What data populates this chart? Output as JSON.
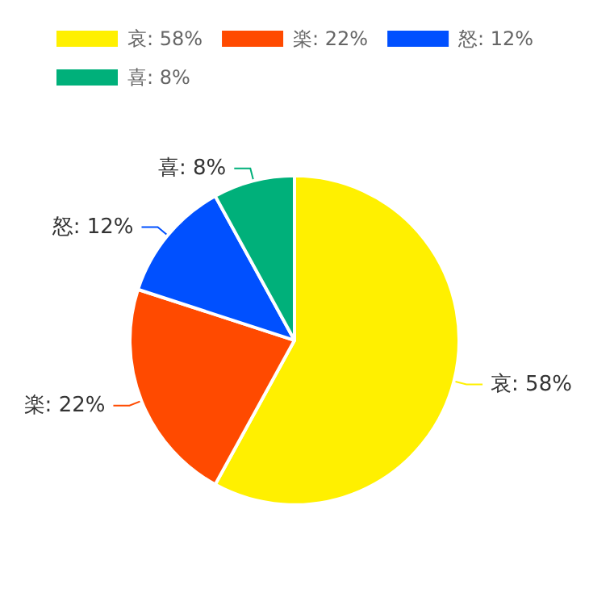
{
  "chart_data": {
    "type": "pie",
    "categories": [
      "哀",
      "楽",
      "怒",
      "喜"
    ],
    "values": [
      58,
      22,
      12,
      8
    ],
    "value_labels": [
      "58%",
      "22%",
      "12%",
      "8%"
    ],
    "colors": [
      "#fff000",
      "#ff4a00",
      "#0050ff",
      "#00b07a"
    ],
    "legend": "top left"
  }
}
